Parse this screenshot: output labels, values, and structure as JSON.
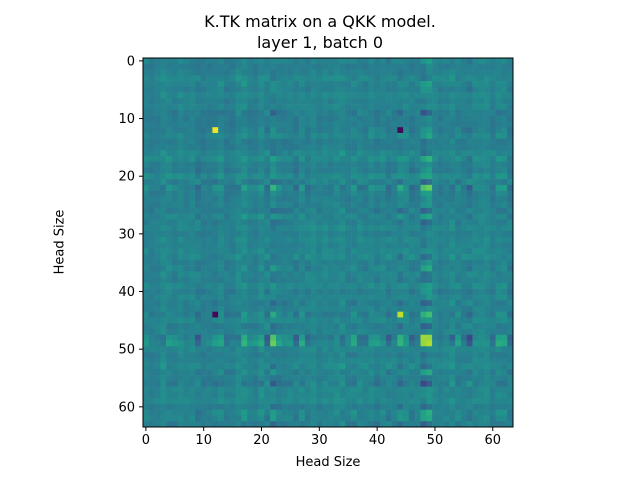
{
  "chart_data": {
    "type": "heatmap",
    "title_line1": "K.TK matrix on a QKK model.",
    "title_line2": "layer 1, batch 0",
    "xlabel": "Head Size",
    "ylabel": "Head Size",
    "size": 64,
    "xlim": [
      -0.5,
      63.5
    ],
    "ylim": [
      63.5,
      -0.5
    ],
    "xticks": [
      0,
      10,
      20,
      30,
      40,
      50,
      60
    ],
    "yticks": [
      0,
      10,
      20,
      30,
      40,
      50,
      60
    ],
    "colormap": "viridis",
    "notable_indices": {
      "strong_bright": [
        12,
        44,
        22,
        24,
        49,
        48
      ],
      "strong_dark": [
        12,
        44,
        24,
        56
      ]
    }
  }
}
